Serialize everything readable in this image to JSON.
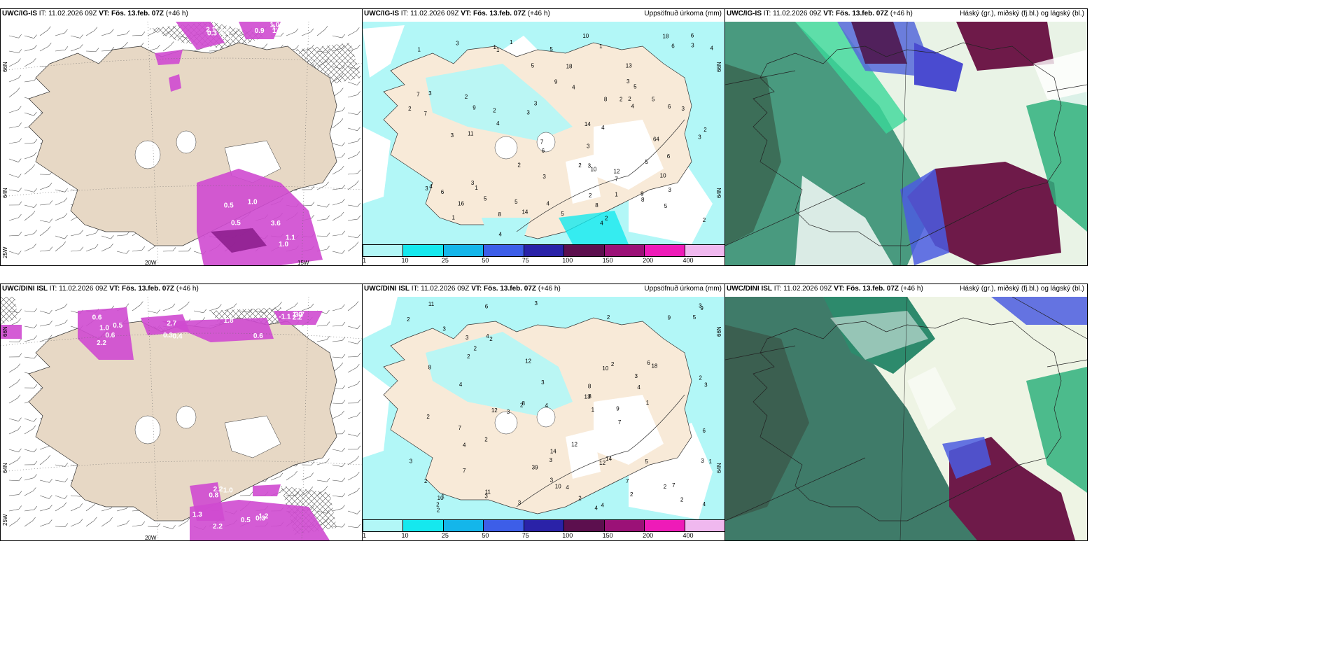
{
  "panels": [
    {
      "id": "top-left",
      "model": "UWC/IG-IS",
      "it_label": "IT:",
      "it_value": "11.02.2026 09Z",
      "vt_label": "VT:",
      "vt_value": "Fös. 13.feb. 07Z",
      "lead": "(+46 h)",
      "right_title": "",
      "lat_labels": [
        "66N",
        "64N"
      ],
      "lon_labels": [
        "25W",
        "20W",
        "15W"
      ],
      "values": [
        "2.1",
        "1.2",
        "1.0",
        "1.1",
        "0.3",
        "1.5",
        "0.5",
        "3.6",
        "0.5",
        "1.0",
        "0.5",
        "1.0",
        "2.9",
        "0.9"
      ]
    },
    {
      "id": "top-middle",
      "model": "UWC/IG-IS",
      "it_label": "IT:",
      "it_value": "11.02.2026 09Z",
      "vt_label": "VT:",
      "vt_value": "Fös. 13.feb. 07Z",
      "lead": "(+46 h)",
      "right_title": "Uppsöfnuð úrkoma (mm)",
      "lat_labels": [
        "66N",
        "64N"
      ],
      "numbers": [
        "2",
        "1",
        "1",
        "2",
        "5",
        "8",
        "3",
        "4",
        "6",
        "5",
        "6",
        "7",
        "7",
        "3",
        "4",
        "18",
        "7",
        "6",
        "5",
        "6",
        "9",
        "10",
        "8",
        "8",
        "4",
        "5",
        "11",
        "9",
        "5",
        "5",
        "7",
        "6",
        "13",
        "5",
        "1",
        "4",
        "10",
        "3",
        "2",
        "12",
        "5",
        "14",
        "4",
        "3",
        "1",
        "6",
        "2",
        "3",
        "3",
        "3",
        "2",
        "4",
        "2",
        "3",
        "1",
        "2",
        "5",
        "3",
        "4",
        "3",
        "2",
        "4",
        "2",
        "3",
        "1",
        "1",
        "3",
        "2",
        "1",
        "3",
        "3",
        "8",
        "16",
        "18",
        "14",
        "10",
        "64",
        "3",
        "2",
        "4",
        "9"
      ],
      "colorbar_ticks": [
        "1",
        "10",
        "25",
        "50",
        "75",
        "100",
        "150",
        "200",
        "400"
      ]
    },
    {
      "id": "top-right",
      "model": "UWC/IG-IS",
      "it_label": "IT:",
      "it_value": "11.02.2026 09Z",
      "vt_label": "VT:",
      "vt_value": "Fös. 13.feb. 07Z",
      "lead": "(+46 h)",
      "right_title": "Háský (gr.), miðský (fj.bl.) og lágský (bl.)"
    },
    {
      "id": "bottom-left",
      "model": "UWC/DINI ISL",
      "it_label": "IT:",
      "it_value": "11.02.2026 09Z",
      "vt_label": "VT:",
      "vt_value": "Fös. 13.feb. 07Z",
      "lead": "(+46 h)",
      "right_title": "",
      "lat_labels": [
        "66N",
        "64N"
      ],
      "lon_labels": [
        "25W",
        "20W"
      ],
      "values": [
        "0.6",
        "2.7",
        "2.2",
        "1.3",
        "1.2",
        "2.2",
        "1.8",
        "3.7",
        "2.2",
        "0.3",
        "0.6",
        "0.6",
        "-1.1",
        "1.0",
        "0.5",
        "0.5",
        "0.4",
        "1.0",
        "0.8",
        "2.2",
        "1.0",
        "0.3"
      ]
    },
    {
      "id": "bottom-middle",
      "model": "UWC/DINI ISL",
      "it_label": "IT:",
      "it_value": "11.02.2026 09Z",
      "vt_label": "VT:",
      "vt_value": "Fös. 13.feb. 07Z",
      "lead": "(+46 h)",
      "right_title": "Uppsöfnuð úrkoma (mm)",
      "lat_labels": [
        "66N",
        "64N"
      ],
      "numbers": [
        "3",
        "4",
        "11",
        "7",
        "6",
        "3",
        "12",
        "2",
        "3",
        "12",
        "9",
        "10",
        "8",
        "3",
        "2",
        "13",
        "8",
        "3",
        "3",
        "2",
        "12",
        "9",
        "8",
        "10",
        "18",
        "7",
        "3",
        "4",
        "11",
        "7",
        "4",
        "4",
        "14",
        "5",
        "7",
        "9",
        "3",
        "2",
        "2",
        "7",
        "8",
        "4",
        "1",
        "1",
        "2",
        "14",
        "6",
        "2",
        "3",
        "3",
        "3",
        "2",
        "4",
        "5",
        "2",
        "6",
        "2",
        "3",
        "4",
        "2",
        "2",
        "2",
        "2",
        "1",
        "4",
        "2",
        "1",
        "3",
        "2",
        "10",
        "39",
        "12",
        "2",
        "4",
        "3"
      ],
      "colorbar_ticks": [
        "1",
        "10",
        "25",
        "50",
        "75",
        "100",
        "150",
        "200",
        "400"
      ]
    },
    {
      "id": "bottom-right",
      "model": "UWC/DINI ISL",
      "it_label": "IT:",
      "it_value": "11.02.2026 09Z",
      "vt_label": "VT:",
      "vt_value": "Fös. 13.feb. 07Z",
      "lead": "(+46 h)",
      "right_title": "Háský (gr.), miðský (fj.bl.) og lágský (bl.)"
    }
  ],
  "colorbar_colors": [
    "#b2f7f7",
    "#15e8ee",
    "#14b6ea",
    "#3d5ee8",
    "#2a22a8",
    "#5c0f4e",
    "#9b1177",
    "#ee1bb8",
    "#f0b8ef"
  ],
  "colors": {
    "land": "#f8ead8",
    "land_gray": "#e7d8c5",
    "sea_cyan": "#b2f7f7",
    "cloud_high": "#1f7f60",
    "cloud_mid": "#6e1a49",
    "cloud_low": "#4b5ce0",
    "precip_magenta": "#d63ccf"
  }
}
